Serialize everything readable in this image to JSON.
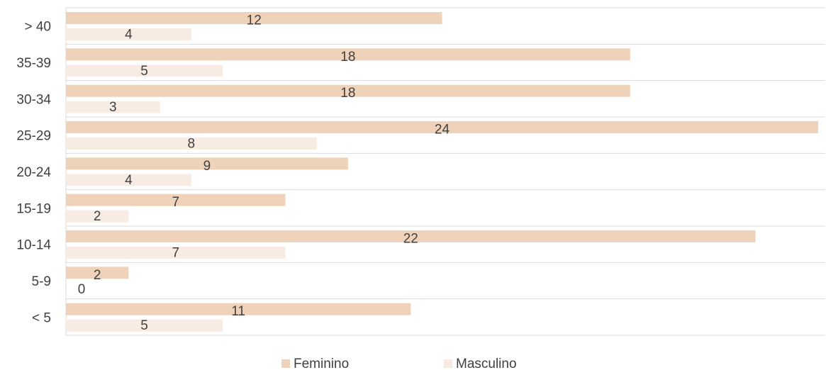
{
  "chart_data": {
    "type": "hbar",
    "categories": [
      "> 40",
      "35-39",
      "30-34",
      "25-29",
      "20-24",
      "15-19",
      "10-14",
      "5-9",
      "< 5"
    ],
    "series": [
      {
        "name": "Feminino",
        "color": "#eed2b9",
        "values": [
          12,
          18,
          18,
          24,
          9,
          7,
          22,
          2,
          11
        ]
      },
      {
        "name": "Masculino",
        "color": "#f8ebe1",
        "values": [
          4,
          5,
          3,
          8,
          4,
          2,
          7,
          0,
          5
        ]
      }
    ],
    "grid": true,
    "legend": "bottom"
  }
}
